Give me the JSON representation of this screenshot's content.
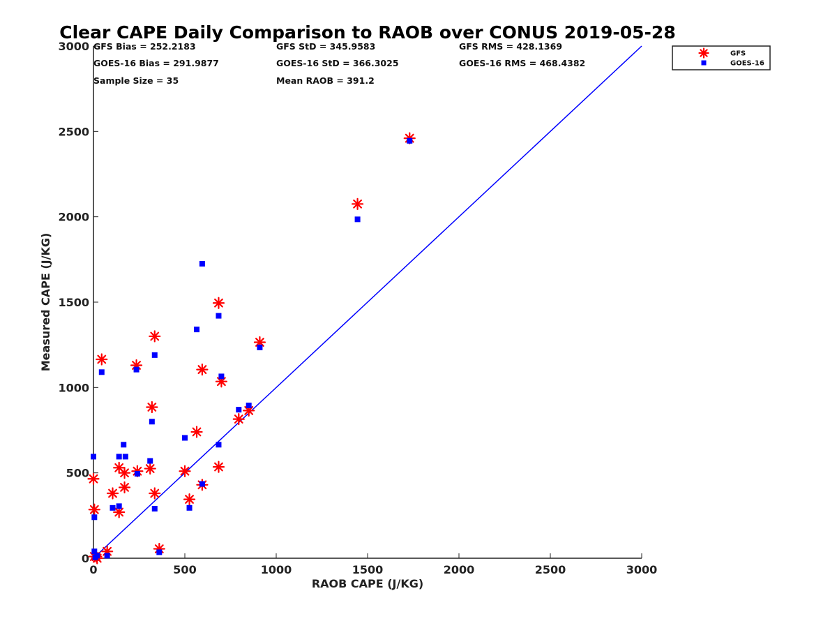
{
  "chart_data": {
    "type": "scatter",
    "title": "Clear CAPE Daily Comparison to RAOB over CONUS 2019-05-28",
    "xlabel": "RAOB CAPE (J/KG)",
    "ylabel": "Measured CAPE (J/KG)",
    "xlim": [
      0,
      3000
    ],
    "ylim": [
      0,
      3000
    ],
    "xticks": [
      "0",
      "500",
      "1000",
      "1500",
      "2000",
      "2500",
      "3000"
    ],
    "yticks": [
      "0",
      "500",
      "1000",
      "1500",
      "2000",
      "2500",
      "3000"
    ],
    "grid": false,
    "legend_position": "top-right, outside plot",
    "reference_line": {
      "x": [
        0,
        3000
      ],
      "y": [
        0,
        3000
      ],
      "color": "#0000ff"
    },
    "stats": [
      [
        "GFS Bias = 252.2183",
        "GFS StD = 345.9583",
        "GFS RMS = 428.1369"
      ],
      [
        "GOES-16 Bias = 291.9877",
        "GOES-16 StD = 366.3025",
        "GOES-16 RMS = 468.4382"
      ],
      [
        "Sample Size = 35",
        "Mean RAOB = 391.2"
      ]
    ],
    "series": [
      {
        "name": "GFS",
        "marker": "asterisk",
        "color": "#ff0000",
        "points": [
          [
            0,
            465
          ],
          [
            5,
            285
          ],
          [
            5,
            10
          ],
          [
            15,
            10
          ],
          [
            20,
            0
          ],
          [
            45,
            1165
          ],
          [
            75,
            40
          ],
          [
            105,
            380
          ],
          [
            140,
            530
          ],
          [
            140,
            270
          ],
          [
            170,
            500
          ],
          [
            170,
            415
          ],
          [
            235,
            1130
          ],
          [
            240,
            510
          ],
          [
            310,
            525
          ],
          [
            320,
            885
          ],
          [
            335,
            1300
          ],
          [
            335,
            380
          ],
          [
            360,
            55
          ],
          [
            500,
            510
          ],
          [
            525,
            345
          ],
          [
            565,
            740
          ],
          [
            595,
            1105
          ],
          [
            595,
            430
          ],
          [
            685,
            1495
          ],
          [
            685,
            535
          ],
          [
            700,
            1035
          ],
          [
            795,
            815
          ],
          [
            850,
            865
          ],
          [
            910,
            1265
          ],
          [
            1445,
            2075
          ],
          [
            1730,
            2460
          ]
        ]
      },
      {
        "name": "GOES-16",
        "marker": "square",
        "color": "#0000ff",
        "points": [
          [
            0,
            595
          ],
          [
            5,
            240
          ],
          [
            5,
            40
          ],
          [
            10,
            5
          ],
          [
            20,
            15
          ],
          [
            45,
            1090
          ],
          [
            75,
            15
          ],
          [
            105,
            295
          ],
          [
            140,
            305
          ],
          [
            140,
            595
          ],
          [
            165,
            665
          ],
          [
            175,
            595
          ],
          [
            235,
            1105
          ],
          [
            240,
            495
          ],
          [
            310,
            570
          ],
          [
            320,
            800
          ],
          [
            335,
            1190
          ],
          [
            335,
            290
          ],
          [
            360,
            35
          ],
          [
            500,
            705
          ],
          [
            525,
            295
          ],
          [
            565,
            1340
          ],
          [
            595,
            1725
          ],
          [
            595,
            435
          ],
          [
            685,
            1420
          ],
          [
            685,
            665
          ],
          [
            700,
            1065
          ],
          [
            795,
            870
          ],
          [
            850,
            895
          ],
          [
            910,
            1235
          ],
          [
            1445,
            1985
          ],
          [
            1730,
            2445
          ]
        ]
      }
    ]
  }
}
